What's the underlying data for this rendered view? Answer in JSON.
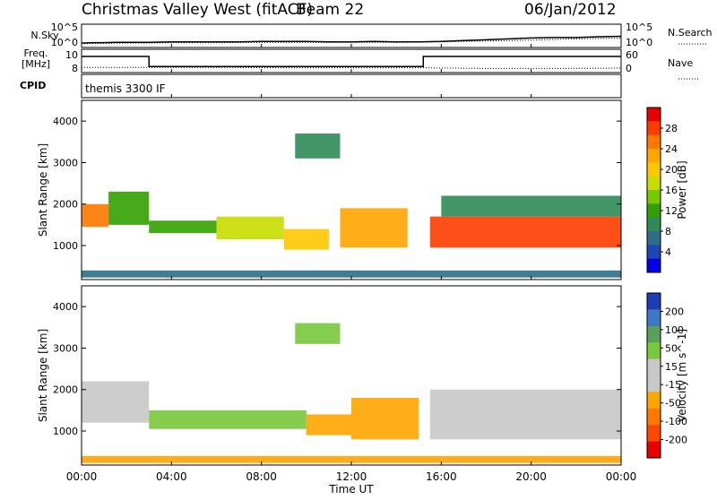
{
  "header": {
    "station": "Christmas Valley West (fitACF)",
    "beam": "Beam 22",
    "date": "06/Jan/2012"
  },
  "chart_data": [
    {
      "type": "line",
      "panel": "noise",
      "left_label": "N.Sky",
      "right_label": "N.Search",
      "left_ticks": [
        "10^5",
        "10^0"
      ],
      "right_ticks": [
        "10^5",
        "10^0"
      ],
      "series": [
        {
          "name": "N.Sky",
          "x": [
            0,
            0.5,
            1,
            1.5,
            2,
            3,
            4,
            5,
            6,
            7,
            8,
            9,
            10,
            11,
            12,
            13,
            14,
            15,
            16,
            17,
            18,
            19,
            20,
            21,
            22,
            23,
            24
          ],
          "y": [
            0.8,
            0.9,
            0.9,
            1.0,
            1.0,
            1.0,
            1.1,
            1.1,
            1.1,
            1.1,
            1.2,
            1.2,
            1.2,
            1.1,
            1.1,
            1.2,
            1.1,
            1.1,
            1.2,
            1.4,
            1.6,
            1.8,
            2.0,
            2.1,
            2.1,
            2.3,
            2.4
          ]
        },
        {
          "name": "N.Search",
          "x": [
            0,
            2,
            4,
            6,
            8,
            10,
            12,
            14,
            16,
            18,
            20,
            22,
            24
          ],
          "y": [
            0.7,
            0.8,
            0.9,
            0.9,
            1.0,
            1.0,
            1.0,
            1.0,
            1.1,
            1.3,
            1.5,
            1.8,
            2.0
          ]
        }
      ],
      "ylim": [
        0,
        5
      ]
    },
    {
      "type": "line",
      "panel": "frequency",
      "left_label_1": "Freq.",
      "left_label_2": "[MHz]",
      "right_label": "Nave",
      "left_ticks": [
        "10",
        "8"
      ],
      "right_ticks": [
        "60",
        "0"
      ],
      "series": [
        {
          "name": "Freq",
          "x": [
            0,
            0.5,
            0.5,
            3.0,
            3.0,
            15.2,
            15.2,
            24
          ],
          "y": [
            10.0,
            10.0,
            10.0,
            10.0,
            8.6,
            8.6,
            10.0,
            10.0
          ]
        },
        {
          "name": "Nave",
          "x": [
            0,
            3,
            6,
            9,
            12,
            15,
            18,
            21,
            24
          ],
          "y": [
            12,
            12,
            12,
            11,
            11,
            11,
            9,
            9,
            10
          ]
        }
      ]
    },
    {
      "type": "text",
      "panel": "cpid",
      "label": "CPID",
      "value": "themis 3300 IF"
    },
    {
      "type": "heatmap",
      "panel": "power",
      "ylabel": "Slant Range [km]",
      "y_ticks": [
        1000,
        2000,
        3000,
        4000
      ],
      "ylim": [
        180,
        4500
      ],
      "colorbar_label": "Power [dB]",
      "colorbar_ticks": [
        "28",
        "24",
        "20",
        "16",
        "12",
        "8",
        "4"
      ],
      "colorbar_colors": [
        "#e60000",
        "#ff3c00",
        "#ff7800",
        "#ffa500",
        "#ffc800",
        "#c8dc00",
        "#78c800",
        "#32a000",
        "#2e8b57",
        "#2e6e8a",
        "#1e46b4",
        "#0000e6"
      ],
      "bands": [
        {
          "x0": 0.0,
          "x1": 1.2,
          "y0": 1450,
          "y1": 2000,
          "level": 0.85
        },
        {
          "x0": 1.2,
          "x1": 3.0,
          "y0": 1500,
          "y1": 2300,
          "level": 0.4
        },
        {
          "x0": 3.0,
          "x1": 6.0,
          "y0": 1300,
          "y1": 1600,
          "level": 0.35
        },
        {
          "x0": 6.0,
          "x1": 9.0,
          "y0": 1150,
          "y1": 1700,
          "level": 0.55
        },
        {
          "x0": 9.0,
          "x1": 11.0,
          "y0": 900,
          "y1": 1400,
          "level": 0.6
        },
        {
          "x0": 11.5,
          "x1": 14.5,
          "y0": 950,
          "y1": 1900,
          "level": 0.7
        },
        {
          "x0": 15.5,
          "x1": 24.0,
          "y0": 950,
          "y1": 1700,
          "level": 0.95
        },
        {
          "x0": 16.0,
          "x1": 24.0,
          "y0": 1700,
          "y1": 2200,
          "level": 0.3
        },
        {
          "x0": 9.5,
          "x1": 11.5,
          "y0": 3100,
          "y1": 3700,
          "level": 0.25
        },
        {
          "x0": 0.0,
          "x1": 24.0,
          "y0": 230,
          "y1": 400,
          "level": 0.2
        }
      ]
    },
    {
      "type": "heatmap",
      "panel": "velocity",
      "ylabel": "Slant Range [km]",
      "y_ticks": [
        1000,
        2000,
        3000,
        4000
      ],
      "ylim": [
        180,
        4500
      ],
      "colorbar_label": "Velocity [m s^-1]",
      "colorbar_ticks": [
        "200",
        "100",
        "50",
        "15",
        "-15",
        "-50",
        "-100",
        "-200"
      ],
      "colorbar_colors": [
        "#1e3cb4",
        "#3c78c8",
        "#5aa05a",
        "#78c83c",
        "#c8c8c8",
        "#c8c8c8",
        "#ffa500",
        "#ff7800",
        "#ff4600",
        "#e60000"
      ],
      "bands": [
        {
          "x0": 0.0,
          "x1": 3.0,
          "y0": 1200,
          "y1": 2200,
          "color": "#c8c8c8"
        },
        {
          "x0": 3.0,
          "x1": 10.0,
          "y0": 1050,
          "y1": 1500,
          "color": "#78c83c"
        },
        {
          "x0": 10.0,
          "x1": 12.0,
          "y0": 900,
          "y1": 1400,
          "color": "#ffa500"
        },
        {
          "x0": 12.0,
          "x1": 15.0,
          "y0": 800,
          "y1": 1800,
          "color": "#ffa500"
        },
        {
          "x0": 15.5,
          "x1": 24.0,
          "y0": 800,
          "y1": 2000,
          "color": "#c8c8c8"
        },
        {
          "x0": 9.5,
          "x1": 11.5,
          "y0": 3100,
          "y1": 3600,
          "color": "#78c83c"
        },
        {
          "x0": 0.0,
          "x1": 24.0,
          "y0": 230,
          "y1": 400,
          "color": "#ffa500"
        }
      ]
    }
  ],
  "x_axis": {
    "label": "Time UT",
    "ticks": [
      "00:00",
      "04:00",
      "08:00",
      "12:00",
      "16:00",
      "20:00",
      "00:00"
    ],
    "xlim": [
      0,
      24
    ]
  }
}
